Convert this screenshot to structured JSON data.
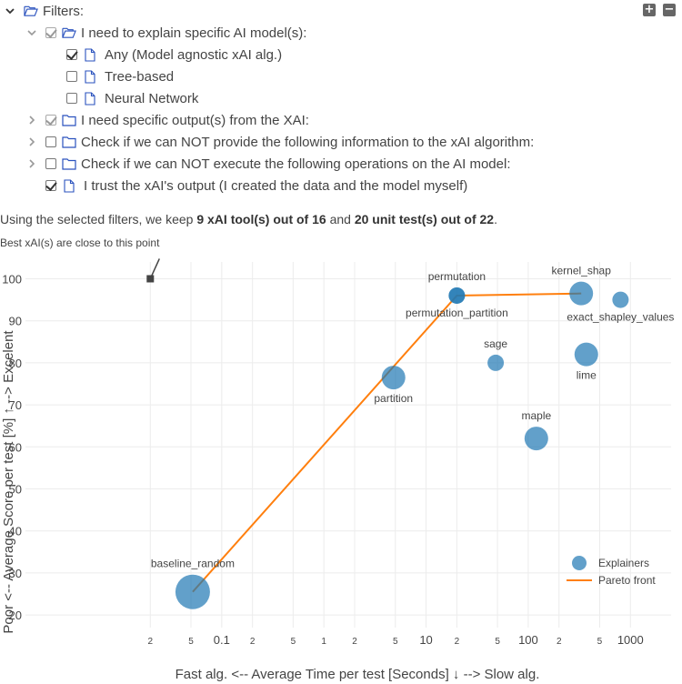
{
  "toolbar": {
    "expand_all_label": "+",
    "collapse_all_label": "−"
  },
  "filters": {
    "root_label": "Filters:",
    "items": [
      {
        "label": "I need to explain specific AI model(s):",
        "state": "half",
        "expanded": true,
        "children": [
          {
            "label": "Any (Model agnostic xAI alg.)",
            "state": "checked"
          },
          {
            "label": "Tree-based",
            "state": "unchecked"
          },
          {
            "label": "Neural Network",
            "state": "unchecked"
          }
        ]
      },
      {
        "label": "I need specific output(s) from the XAI:",
        "state": "half",
        "expanded": false
      },
      {
        "label": "Check if we can NOT provide the following information to the xAI algorithm:",
        "state": "unchecked",
        "expanded": false
      },
      {
        "label": "Check if we can NOT execute the following operations on the AI model:",
        "state": "unchecked",
        "expanded": false
      },
      {
        "label": "I trust the xAI's output (I created the data and the model myself)",
        "state": "checked"
      }
    ]
  },
  "summary": {
    "prefix": "Using the selected filters, we keep",
    "tools_kept": "9 xAI tool(s) out of 16",
    "middle": "and",
    "tests_kept": "20 unit test(s) out of 22",
    "suffix": "."
  },
  "best_note": "Best xAI(s) are close to this point",
  "chart_data": {
    "type": "scatter",
    "title": "",
    "xlabel": "Fast alg. <--     Average Time per test [Seconds] ↓     --> Slow alg.",
    "ylabel": "Poor <--  Average Score per test [%] ↑  --> Excelent",
    "x_scale": "log",
    "xlim": [
      0.0012,
      2500
    ],
    "ylim": [
      17,
      104
    ],
    "x_ticks": [
      {
        "v": 0.02,
        "label": "2"
      },
      {
        "v": 0.05,
        "label": "5"
      },
      {
        "v": 0.1,
        "label": "0.1"
      },
      {
        "v": 0.2,
        "label": "2"
      },
      {
        "v": 0.5,
        "label": "5"
      },
      {
        "v": 1,
        "label": "1"
      },
      {
        "v": 2,
        "label": "2"
      },
      {
        "v": 5,
        "label": "5"
      },
      {
        "v": 10,
        "label": "10"
      },
      {
        "v": 20,
        "label": "2"
      },
      {
        "v": 50,
        "label": "5"
      },
      {
        "v": 100,
        "label": "100"
      },
      {
        "v": 200,
        "label": "2"
      },
      {
        "v": 500,
        "label": "5"
      },
      {
        "v": 1000,
        "label": "1000"
      }
    ],
    "y_ticks": [
      20,
      30,
      40,
      50,
      60,
      70,
      80,
      90,
      100
    ],
    "grid": true,
    "legend_position": "bottom-right",
    "best_point": {
      "x": 0.02,
      "y": 100
    },
    "series": [
      {
        "name": "Explainers",
        "color": "#1f77b4",
        "points": [
          {
            "label": "baseline_random",
            "x": 0.052,
            "y": 25.5,
            "size": "large",
            "label_pos": "above"
          },
          {
            "label": "partition",
            "x": 4.8,
            "y": 76.5,
            "size": "medium",
            "label_pos": "below"
          },
          {
            "label": "permutation",
            "x": 20,
            "y": 96,
            "size": "small",
            "label_pos": "above"
          },
          {
            "label": "permutation_partition",
            "x": 20,
            "y": 96,
            "size": "small",
            "label_pos": "below"
          },
          {
            "label": "sage",
            "x": 48,
            "y": 80,
            "size": "small",
            "label_pos": "above"
          },
          {
            "label": "maple",
            "x": 120,
            "y": 62,
            "size": "medium",
            "label_pos": "above"
          },
          {
            "label": "kernel_shap",
            "x": 330,
            "y": 96.5,
            "size": "medium",
            "label_pos": "above"
          },
          {
            "label": "lime",
            "x": 370,
            "y": 82,
            "size": "medium",
            "label_pos": "below"
          },
          {
            "label": "exact_shapley_values",
            "x": 800,
            "y": 95,
            "size": "small",
            "label_pos": "below"
          }
        ]
      },
      {
        "name": "Pareto front",
        "color": "#ff7f0e",
        "type": "line",
        "points": [
          {
            "x": 0.052,
            "y": 25.5
          },
          {
            "x": 20,
            "y": 96
          },
          {
            "x": 330,
            "y": 96.5
          }
        ]
      }
    ]
  }
}
